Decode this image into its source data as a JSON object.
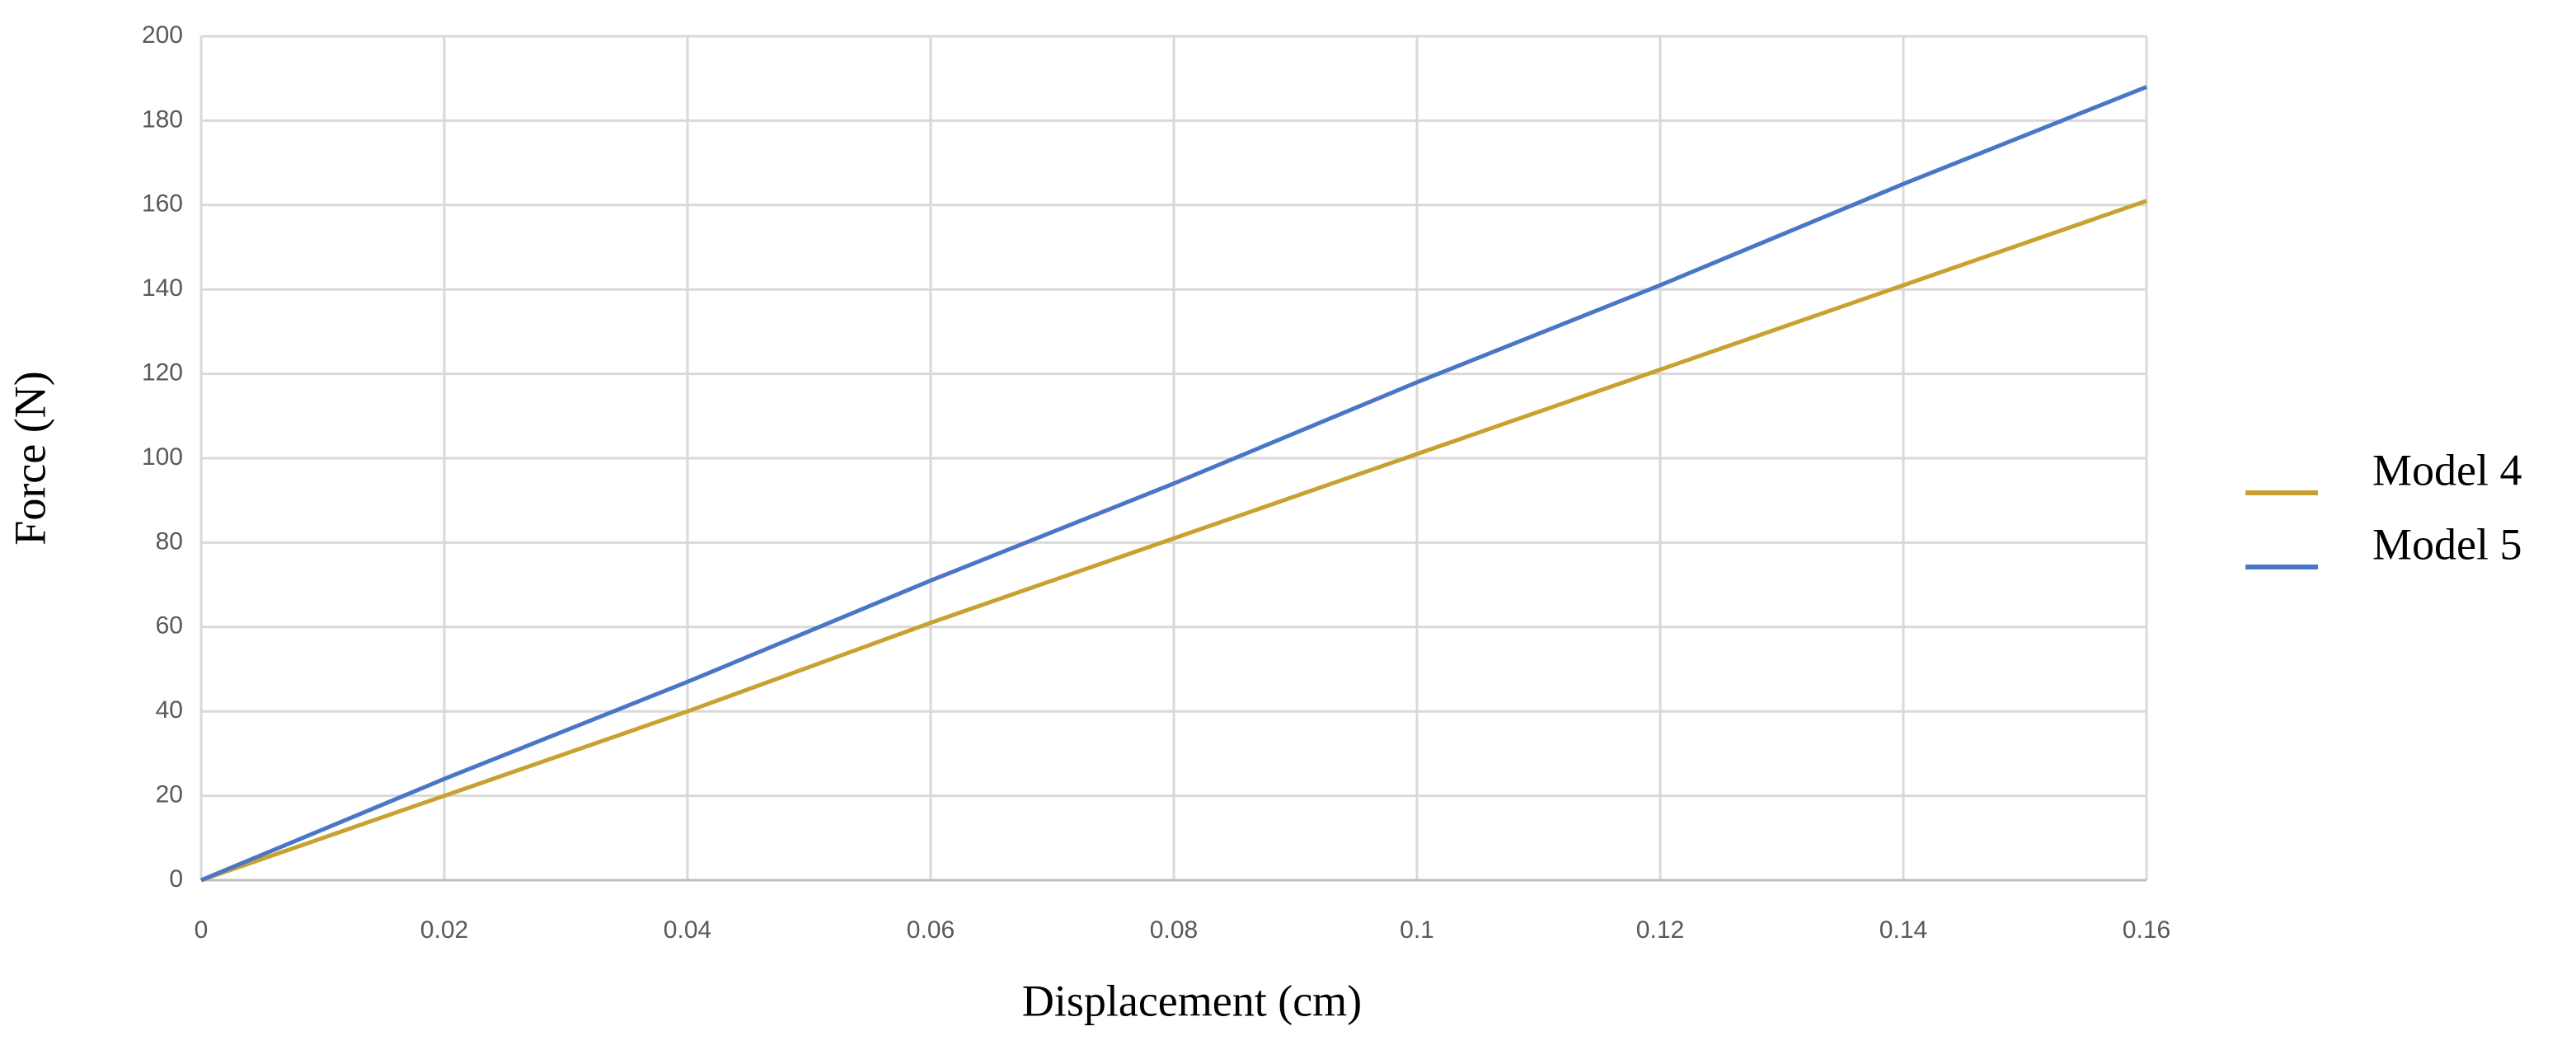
{
  "chart_data": {
    "type": "line",
    "x_label": "Displacement (cm)",
    "y_label": "Force (N)",
    "x": [
      0,
      0.02,
      0.04,
      0.06,
      0.08,
      0.1,
      0.12,
      0.14,
      0.16
    ],
    "series": [
      {
        "name": "Model 4",
        "color": "#c9a130",
        "values": [
          0,
          20,
          40,
          61,
          81,
          101,
          121,
          141,
          161
        ]
      },
      {
        "name": "Model 5",
        "color": "#4a76c6",
        "values": [
          0,
          24,
          47,
          71,
          94,
          118,
          141,
          165,
          188
        ]
      }
    ],
    "xlim": [
      0,
      0.16
    ],
    "xticks": [
      0,
      0.02,
      0.04,
      0.06,
      0.08,
      0.1,
      0.12,
      0.14,
      0.16
    ],
    "ylim": [
      0,
      200
    ],
    "yticks": [
      0,
      20,
      40,
      60,
      80,
      100,
      120,
      140,
      160,
      180,
      200
    ],
    "grid": true,
    "legend": "right"
  }
}
